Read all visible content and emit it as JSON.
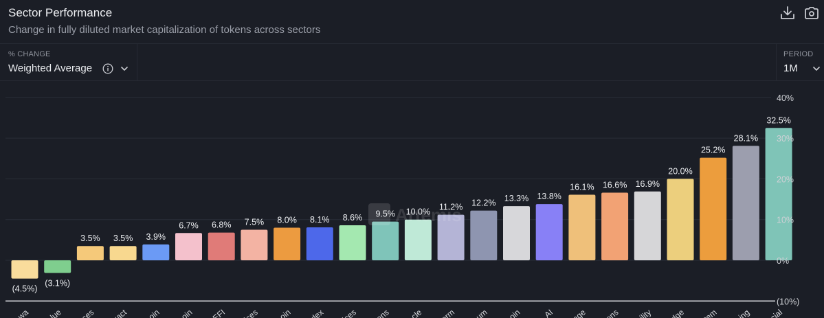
{
  "header": {
    "title": "Sector Performance",
    "subtitle": "Change in fully diluted market capitalization of tokens across sectors",
    "icons": [
      "download-icon",
      "camera-icon"
    ]
  },
  "controls": {
    "metric": {
      "label": "% CHANGE",
      "value": "Weighted Average",
      "icons": [
        "info-icon",
        "chevron-down-icon"
      ]
    },
    "period": {
      "label": "PERIOD",
      "value": "1M",
      "icons": [
        "chevron-down-icon"
      ]
    }
  },
  "watermark": "Artemis",
  "chart_data": {
    "type": "bar",
    "title": "Sector Performance",
    "subtitle": "Change in fully diluted market capitalization of tokens across sectors",
    "xlabel": "",
    "ylabel": "% Change",
    "ylim": [
      -10,
      40
    ],
    "yticks": [
      40,
      30,
      20,
      10,
      0,
      -10
    ],
    "ytick_labels": [
      "40%",
      "30%",
      "20%",
      "10%",
      "0%",
      "(10%)"
    ],
    "y_axis_position": "right",
    "grid": true,
    "categories": [
      "...wa",
      "...lue",
      "...ces",
      "...ract",
      "...oin",
      "...oin",
      "...EFI",
      "...ices",
      "...oin",
      "...dex",
      "...ices",
      "...ens",
      "...cle",
      "...orm",
      "...um",
      "...oin",
      "AI",
      "...age",
      "...ons",
      "...ility",
      "...dge",
      "...tem",
      "...ing",
      "...cial"
    ],
    "values": [
      -4.5,
      -3.1,
      3.5,
      3.5,
      3.9,
      6.7,
      6.8,
      7.5,
      8.0,
      8.1,
      8.6,
      9.5,
      10.0,
      11.2,
      12.2,
      13.3,
      13.8,
      16.1,
      16.6,
      16.9,
      20.0,
      25.2,
      28.1,
      32.5
    ],
    "value_labels": [
      "(4.5%)",
      "(3.1%)",
      "3.5%",
      "3.5%",
      "3.9%",
      "6.7%",
      "6.8%",
      "7.5%",
      "8.0%",
      "8.1%",
      "8.6%",
      "9.5%",
      "10.0%",
      "11.2%",
      "12.2%",
      "13.3%",
      "13.8%",
      "16.1%",
      "16.6%",
      "16.9%",
      "20.0%",
      "25.2%",
      "28.1%",
      "32.5%"
    ],
    "colors": [
      "#f9dc9c",
      "#7fce8e",
      "#f5c97a",
      "#f8d88f",
      "#6b9af5",
      "#f4c1cc",
      "#e07b78",
      "#f3b3a3",
      "#ec9b40",
      "#4d68ea",
      "#a4e8b0",
      "#7fc4b9",
      "#bfe9d7",
      "#b4b4d6",
      "#8e95b0",
      "#d7d7da",
      "#8880f6",
      "#efc07a",
      "#f2a274",
      "#d6d6d8",
      "#eccf7d",
      "#ec9d3d",
      "#9c9eae",
      "#7fc4b7"
    ]
  }
}
